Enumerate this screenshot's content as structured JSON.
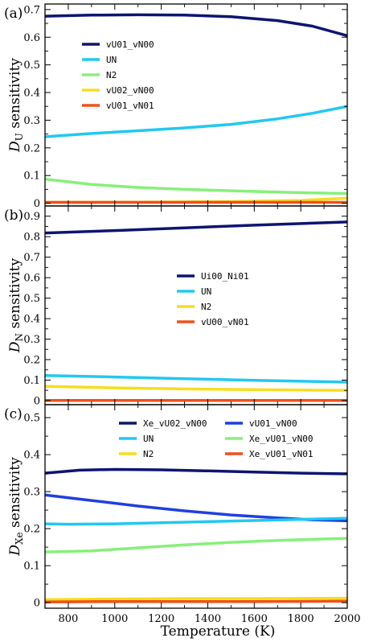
{
  "figure": {
    "xlabel": "Temperature (K)",
    "x_ticks": [
      800,
      1000,
      1200,
      1400,
      1600,
      1800,
      2000
    ]
  },
  "chart_data": [
    {
      "type": "line",
      "panel_label": "(a)",
      "ylabel_main": "D",
      "ylabel_sub": "U",
      "ylabel_rest": " sensitivity",
      "xlim": [
        700,
        2000
      ],
      "ylim": [
        -0.01,
        0.72
      ],
      "y_ticks": [
        0,
        0.1,
        0.2,
        0.3,
        0.4,
        0.5,
        0.6,
        0.7
      ],
      "y_tick_labels": [
        "0",
        "0.1",
        "0.2",
        "0.3",
        "0.4",
        "0.5",
        "0.6",
        "0.7"
      ],
      "legend_position": "upper-left",
      "legend_columns": 1,
      "series": [
        {
          "name": "vU01_vN00",
          "color": "#0d1570",
          "x": [
            700,
            900,
            1100,
            1300,
            1500,
            1700,
            1850,
            2000
          ],
          "y": [
            0.676,
            0.68,
            0.681,
            0.68,
            0.674,
            0.66,
            0.64,
            0.605
          ]
        },
        {
          "name": "UN",
          "color": "#22c8f0",
          "x": [
            700,
            900,
            1100,
            1300,
            1500,
            1700,
            1850,
            2000
          ],
          "y": [
            0.24,
            0.252,
            0.262,
            0.272,
            0.285,
            0.305,
            0.325,
            0.35
          ]
        },
        {
          "name": "N2",
          "color": "#86f07a",
          "x": [
            700,
            900,
            1100,
            1300,
            1500,
            1700,
            1850,
            2000
          ],
          "y": [
            0.087,
            0.068,
            0.057,
            0.05,
            0.045,
            0.04,
            0.037,
            0.035
          ]
        },
        {
          "name": "vU02_vN00",
          "color": "#f5de1e",
          "x": [
            700,
            1100,
            1500,
            1800,
            2000
          ],
          "y": [
            0.003,
            0.004,
            0.006,
            0.01,
            0.018
          ]
        },
        {
          "name": "vU01_vN01",
          "color": "#f0501a",
          "x": [
            700,
            1200,
            1600,
            2000
          ],
          "y": [
            0.003,
            0.003,
            0.003,
            0.003
          ]
        }
      ]
    },
    {
      "type": "line",
      "panel_label": "(b)",
      "ylabel_main": "D",
      "ylabel_sub": "N",
      "ylabel_rest": " sensitivity",
      "xlim": [
        700,
        2000
      ],
      "ylim": [
        -0.02,
        0.95
      ],
      "y_ticks": [
        0,
        0.1,
        0.2,
        0.3,
        0.4,
        0.5,
        0.6,
        0.7,
        0.8,
        0.9
      ],
      "y_tick_labels": [
        "0",
        "0.1",
        "0.2",
        "0.3",
        "0.4",
        "0.5",
        "0.6",
        "0.7",
        "0.8",
        "0.9"
      ],
      "legend_position": "center-right",
      "legend_columns": 1,
      "series": [
        {
          "name": "Ui00_Ni01",
          "color": "#0d1570",
          "x": [
            700,
            1000,
            1300,
            1600,
            2000
          ],
          "y": [
            0.818,
            0.83,
            0.843,
            0.856,
            0.872
          ]
        },
        {
          "name": "UN",
          "color": "#22c8f0",
          "x": [
            700,
            1000,
            1300,
            1600,
            2000
          ],
          "y": [
            0.122,
            0.115,
            0.107,
            0.099,
            0.09
          ]
        },
        {
          "name": "N2",
          "color": "#f5de1e",
          "x": [
            700,
            1000,
            1300,
            1600,
            2000
          ],
          "y": [
            0.07,
            0.062,
            0.057,
            0.053,
            0.05
          ]
        },
        {
          "name": "vU00_vN01",
          "color": "#f0501a",
          "x": [
            700,
            1300,
            2000
          ],
          "y": [
            0.001,
            0.001,
            0.001
          ]
        }
      ]
    },
    {
      "type": "line",
      "panel_label": "(c)",
      "ylabel_main": "D",
      "ylabel_sub": "Xe",
      "ylabel_rest": " sensitivity",
      "xlim": [
        700,
        2000
      ],
      "ylim": [
        -0.015,
        0.535
      ],
      "y_ticks": [
        0,
        0.1,
        0.2,
        0.3,
        0.4,
        0.5
      ],
      "y_tick_labels": [
        "0",
        "0.1",
        "0.2",
        "0.3",
        "0.4",
        "0.5"
      ],
      "legend_position": "top",
      "legend_columns": 2,
      "series": [
        {
          "name": "Xe_vU02_vN00",
          "color": "#0d1570",
          "x": [
            700,
            850,
            1000,
            1200,
            1400,
            1600,
            1800,
            2000
          ],
          "y": [
            0.35,
            0.358,
            0.36,
            0.359,
            0.356,
            0.353,
            0.35,
            0.348
          ]
        },
        {
          "name": "vU01_vN00",
          "color": "#1f3fe0",
          "x": [
            700,
            900,
            1100,
            1300,
            1500,
            1700,
            1850,
            2000
          ],
          "y": [
            0.291,
            0.276,
            0.261,
            0.248,
            0.237,
            0.229,
            0.224,
            0.221
          ]
        },
        {
          "name": "UN",
          "color": "#22c8f0",
          "x": [
            700,
            800,
            1000,
            1200,
            1400,
            1600,
            1800,
            2000
          ],
          "y": [
            0.213,
            0.212,
            0.213,
            0.216,
            0.219,
            0.222,
            0.225,
            0.228
          ]
        },
        {
          "name": "Xe_vU01_vN00",
          "color": "#86f07a",
          "x": [
            700,
            900,
            1100,
            1300,
            1500,
            1700,
            1850,
            2000
          ],
          "y": [
            0.137,
            0.14,
            0.148,
            0.156,
            0.163,
            0.168,
            0.171,
            0.174
          ]
        },
        {
          "name": "N2",
          "color": "#f5de1e",
          "x": [
            700,
            1000,
            1300,
            1600,
            2000
          ],
          "y": [
            0.008,
            0.01,
            0.011,
            0.011,
            0.012
          ]
        },
        {
          "name": "Xe_vU01_vN01",
          "color": "#f0501a",
          "x": [
            700,
            1000,
            1300,
            1600,
            2000
          ],
          "y": [
            0.002,
            0.003,
            0.003,
            0.003,
            0.004
          ]
        }
      ]
    }
  ]
}
